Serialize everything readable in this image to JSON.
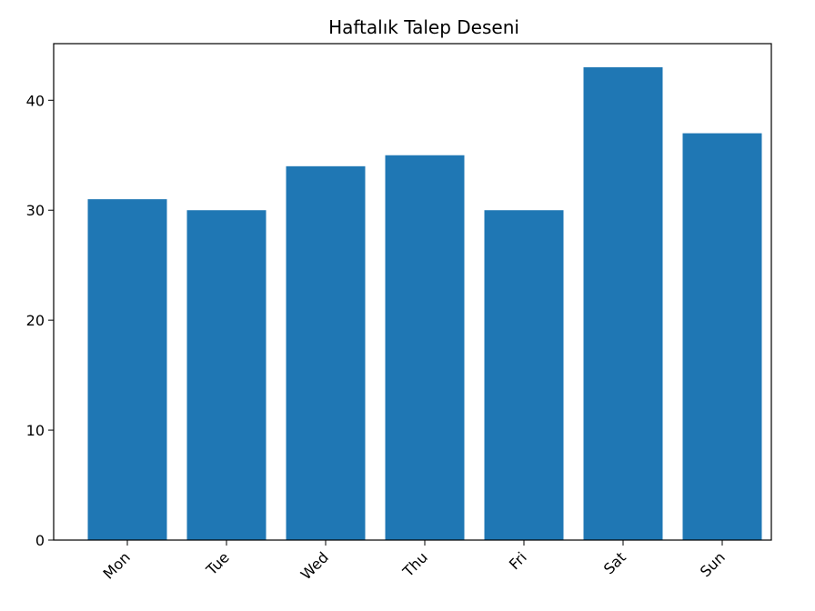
{
  "chart_data": {
    "type": "bar",
    "title": "Haftalık Talep Deseni",
    "xlabel": "",
    "ylabel": "",
    "categories": [
      "Mon",
      "Tue",
      "Wed",
      "Thu",
      "Fri",
      "Sat",
      "Sun"
    ],
    "values": [
      31,
      30,
      34,
      35,
      30,
      43,
      37
    ],
    "ylim": [
      0,
      45.15
    ],
    "yticks": [
      "0",
      "10",
      "20",
      "30",
      "40"
    ],
    "ytick_values": [
      0,
      10,
      20,
      30,
      40
    ],
    "bar_color": "#1f77b4",
    "grid": false,
    "legend": "none"
  }
}
